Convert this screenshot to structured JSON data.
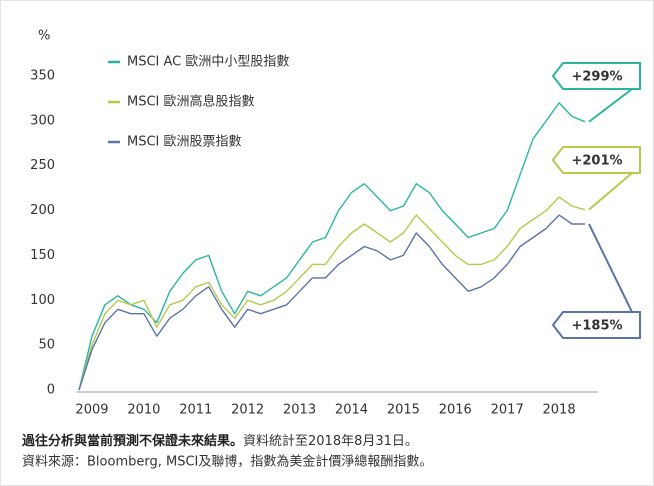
{
  "chart_data": {
    "type": "line",
    "ylabel": "%",
    "x": [
      2008.75,
      2009,
      2009.25,
      2009.5,
      2009.75,
      2010,
      2010.25,
      2010.5,
      2010.75,
      2011,
      2011.25,
      2011.5,
      2011.75,
      2012,
      2012.25,
      2012.5,
      2012.75,
      2013,
      2013.25,
      2013.5,
      2013.75,
      2014,
      2014.25,
      2014.5,
      2014.75,
      2015,
      2015.25,
      2015.5,
      2015.75,
      2016,
      2016.25,
      2016.5,
      2016.75,
      2017,
      2017.25,
      2017.5,
      2017.75,
      2018,
      2018.25,
      2018.5
    ],
    "series": [
      {
        "name": "MSCI AC 歐洲中小型股指數",
        "color": "#2bb5a0",
        "values": [
          0,
          60,
          95,
          105,
          95,
          90,
          75,
          110,
          130,
          145,
          150,
          110,
          85,
          110,
          105,
          115,
          125,
          145,
          165,
          170,
          200,
          220,
          230,
          215,
          200,
          205,
          230,
          220,
          200,
          185,
          170,
          175,
          180,
          200,
          240,
          280,
          300,
          320,
          305,
          299
        ]
      },
      {
        "name": "MSCI 歐洲高息股指數",
        "color": "#b5c94a",
        "values": [
          0,
          50,
          85,
          100,
          95,
          100,
          70,
          95,
          100,
          115,
          120,
          95,
          80,
          100,
          95,
          100,
          110,
          125,
          140,
          140,
          160,
          175,
          185,
          175,
          165,
          175,
          195,
          180,
          165,
          150,
          140,
          140,
          145,
          160,
          180,
          190,
          200,
          215,
          205,
          201
        ]
      },
      {
        "name": "MSCI 歐洲股票指數",
        "color": "#5b73a8",
        "values": [
          0,
          45,
          75,
          90,
          85,
          85,
          60,
          80,
          90,
          105,
          115,
          90,
          70,
          90,
          85,
          90,
          95,
          110,
          125,
          125,
          140,
          150,
          160,
          155,
          145,
          150,
          175,
          160,
          140,
          125,
          110,
          115,
          125,
          140,
          160,
          170,
          180,
          195,
          185,
          185
        ]
      }
    ],
    "annotations": [
      "+299%",
      "+201%",
      "+185%"
    ],
    "xlim": [
      2008.7,
      2018.75
    ],
    "xticks": [
      2009,
      2010,
      2011,
      2012,
      2013,
      2014,
      2015,
      2016,
      2017,
      2018
    ],
    "ylim": [
      0,
      350
    ],
    "yticks": [
      0,
      50,
      100,
      150,
      200,
      250,
      300,
      350
    ],
    "grid": false,
    "footnote_bold": "過往分析與當前預測不保證未來結果。",
    "footnote": "資料統計至2018年8月31日。",
    "source": "資料來源：Bloomberg, MSCI及聯博，指數為美金計價淨總報酬指數。"
  }
}
